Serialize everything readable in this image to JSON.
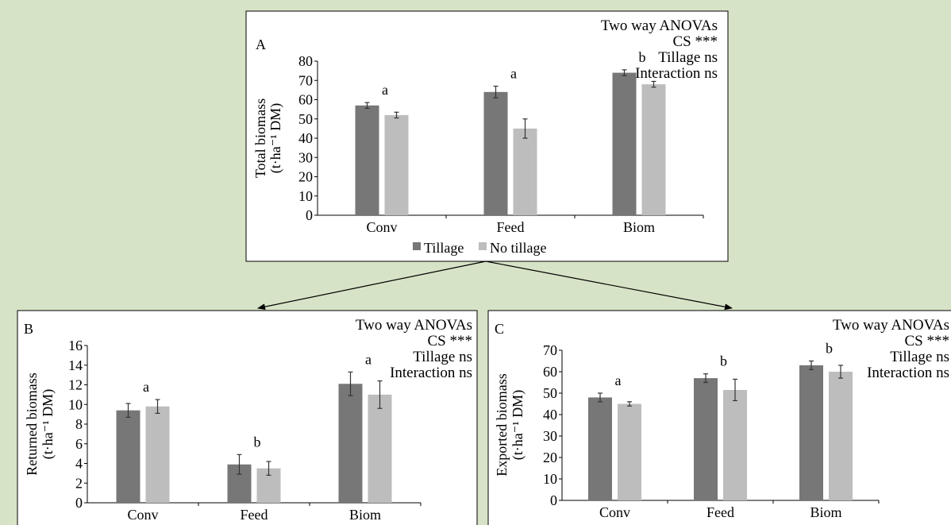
{
  "colors": {
    "tillage": "#777777",
    "no_tillage": "#bdbdbd",
    "background": "#d7e3c6",
    "panel": "#ffffff"
  },
  "legend": {
    "tillage": "Tillage",
    "no_tillage": "No tillage"
  },
  "chart_data": [
    {
      "panel": "A",
      "type": "bar",
      "categories": [
        "Conv",
        "Feed",
        "Biom"
      ],
      "ylabel_line1": "Total biomass",
      "ylabel_line2": "(t·ha⁻¹ DM)",
      "ylim": [
        0,
        80
      ],
      "yticks": [
        0,
        10,
        20,
        30,
        40,
        50,
        60,
        70,
        80
      ],
      "series": [
        {
          "name": "Tillage",
          "values": [
            57,
            64,
            74
          ],
          "errors": [
            1.5,
            3,
            1.5
          ]
        },
        {
          "name": "No tillage",
          "values": [
            52,
            45,
            68
          ],
          "errors": [
            1.5,
            5,
            1.5
          ]
        }
      ],
      "letters": [
        "a",
        "a",
        "b"
      ],
      "anova": [
        "Two way ANOVAs",
        "CS ***",
        "Tillage ns",
        "Interaction ns"
      ]
    },
    {
      "panel": "B",
      "type": "bar",
      "categories": [
        "Conv",
        "Feed",
        "Biom"
      ],
      "ylabel_line1": "Returned biomass",
      "ylabel_line2": "(t·ha⁻¹ DM)",
      "ylim": [
        0,
        16
      ],
      "yticks": [
        0,
        2,
        4,
        6,
        8,
        10,
        12,
        14,
        16
      ],
      "series": [
        {
          "name": "Tillage",
          "values": [
            9.4,
            3.9,
            12.1
          ],
          "errors": [
            0.7,
            1.0,
            1.2
          ]
        },
        {
          "name": "No tillage",
          "values": [
            9.8,
            3.5,
            11.0
          ],
          "errors": [
            0.7,
            0.7,
            1.4
          ]
        }
      ],
      "letters": [
        "a",
        "b",
        "a"
      ],
      "anova": [
        "Two way ANOVAs",
        "CS ***",
        "Tillage ns",
        "Interaction ns"
      ]
    },
    {
      "panel": "C",
      "type": "bar",
      "categories": [
        "Conv",
        "Feed",
        "Biom"
      ],
      "ylabel_line1": "Exported biomass",
      "ylabel_line2": "(t·ha⁻¹ DM)",
      "ylim": [
        0,
        70
      ],
      "yticks": [
        0,
        10,
        20,
        30,
        40,
        50,
        60,
        70
      ],
      "series": [
        {
          "name": "Tillage",
          "values": [
            48,
            57,
            63
          ],
          "errors": [
            2,
            2,
            2
          ]
        },
        {
          "name": "No tillage",
          "values": [
            45,
            51.5,
            60
          ],
          "errors": [
            1,
            5,
            3
          ]
        }
      ],
      "letters": [
        "a",
        "b",
        "b"
      ],
      "anova": [
        "Two way ANOVAs",
        "CS ***",
        "Tillage ns",
        "Interaction ns"
      ]
    }
  ]
}
